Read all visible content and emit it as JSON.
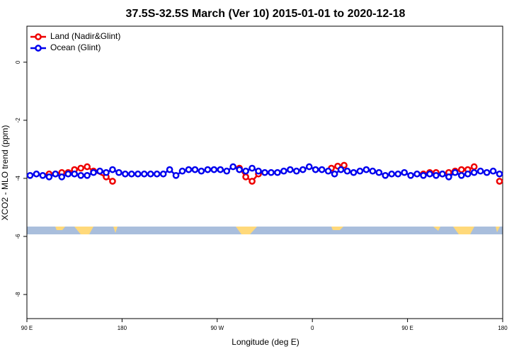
{
  "chart_data": {
    "type": "line",
    "title": "37.5S-32.5S March (Ver 10)   2015-01-01 to 2020-12-18",
    "xlabel": "Longitude (deg E)",
    "ylabel": "XCO2 - MLO trend (ppm)",
    "xlim": [
      90,
      540
    ],
    "xticks": [
      {
        "value": 90,
        "label": "90 E"
      },
      {
        "value": 180,
        "label": "180"
      },
      {
        "value": 270,
        "label": "90 W"
      },
      {
        "value": 360,
        "label": "0"
      },
      {
        "value": 450,
        "label": "90 E"
      },
      {
        "value": 540,
        "label": "180"
      }
    ],
    "ylim": [
      -8.83,
      1.24
    ],
    "yticks": [
      0,
      -2,
      -4,
      -6,
      -8
    ],
    "legend": "top-left",
    "series": [
      {
        "name": "Land (Nadir&Glint)",
        "color": "#ee0000",
        "x": [
          111,
          117,
          123,
          129,
          135,
          141,
          147,
          153,
          165,
          171,
          null,
          291,
          297,
          303,
          309,
          null,
          378,
          384,
          390,
          null,
          465,
          471,
          477,
          483,
          489,
          495,
          501,
          507,
          513,
          null,
          537
        ],
        "values": [
          -3.85,
          -3.85,
          -3.8,
          -3.8,
          -3.7,
          -3.65,
          -3.6,
          -3.75,
          -3.95,
          -4.1,
          null,
          -3.65,
          -3.95,
          -4.1,
          -3.85,
          null,
          -3.65,
          -3.58,
          -3.55,
          null,
          -3.85,
          -3.8,
          -3.8,
          -3.85,
          -3.8,
          -3.75,
          -3.7,
          -3.7,
          -3.6,
          null,
          -4.1
        ]
      },
      {
        "name": "Ocean (Glint)",
        "color": "#0000ee",
        "x": [
          93,
          99,
          105,
          111,
          117,
          123,
          129,
          135,
          141,
          147,
          153,
          159,
          165,
          171,
          177,
          183,
          189,
          195,
          201,
          207,
          213,
          219,
          225,
          231,
          237,
          243,
          249,
          255,
          261,
          267,
          273,
          279,
          285,
          291,
          297,
          303,
          309,
          315,
          321,
          327,
          333,
          339,
          345,
          351,
          357,
          363,
          369,
          375,
          381,
          387,
          393,
          399,
          405,
          411,
          417,
          423,
          429,
          435,
          441,
          447,
          453,
          459,
          465,
          471,
          477,
          483,
          489,
          495,
          501,
          507,
          513,
          519,
          525,
          531,
          537
        ],
        "values": [
          -3.9,
          -3.85,
          -3.9,
          -3.95,
          -3.85,
          -3.95,
          -3.85,
          -3.85,
          -3.9,
          -3.9,
          -3.8,
          -3.75,
          -3.8,
          -3.7,
          -3.8,
          -3.85,
          -3.85,
          -3.85,
          -3.85,
          -3.85,
          -3.85,
          -3.85,
          -3.7,
          -3.9,
          -3.75,
          -3.7,
          -3.7,
          -3.75,
          -3.7,
          -3.7,
          -3.7,
          -3.75,
          -3.6,
          -3.7,
          -3.75,
          -3.65,
          -3.75,
          -3.8,
          -3.8,
          -3.8,
          -3.75,
          -3.7,
          -3.75,
          -3.7,
          -3.6,
          -3.7,
          -3.7,
          -3.75,
          -3.85,
          -3.7,
          -3.75,
          -3.8,
          -3.75,
          -3.7,
          -3.75,
          -3.8,
          -3.9,
          -3.85,
          -3.85,
          -3.8,
          -3.9,
          -3.85,
          -3.9,
          -3.85,
          -3.9,
          -3.85,
          -3.95,
          -3.8,
          -3.9,
          -3.85,
          -3.8,
          -3.75,
          -3.8,
          -3.75,
          -3.85
        ]
      }
    ]
  }
}
